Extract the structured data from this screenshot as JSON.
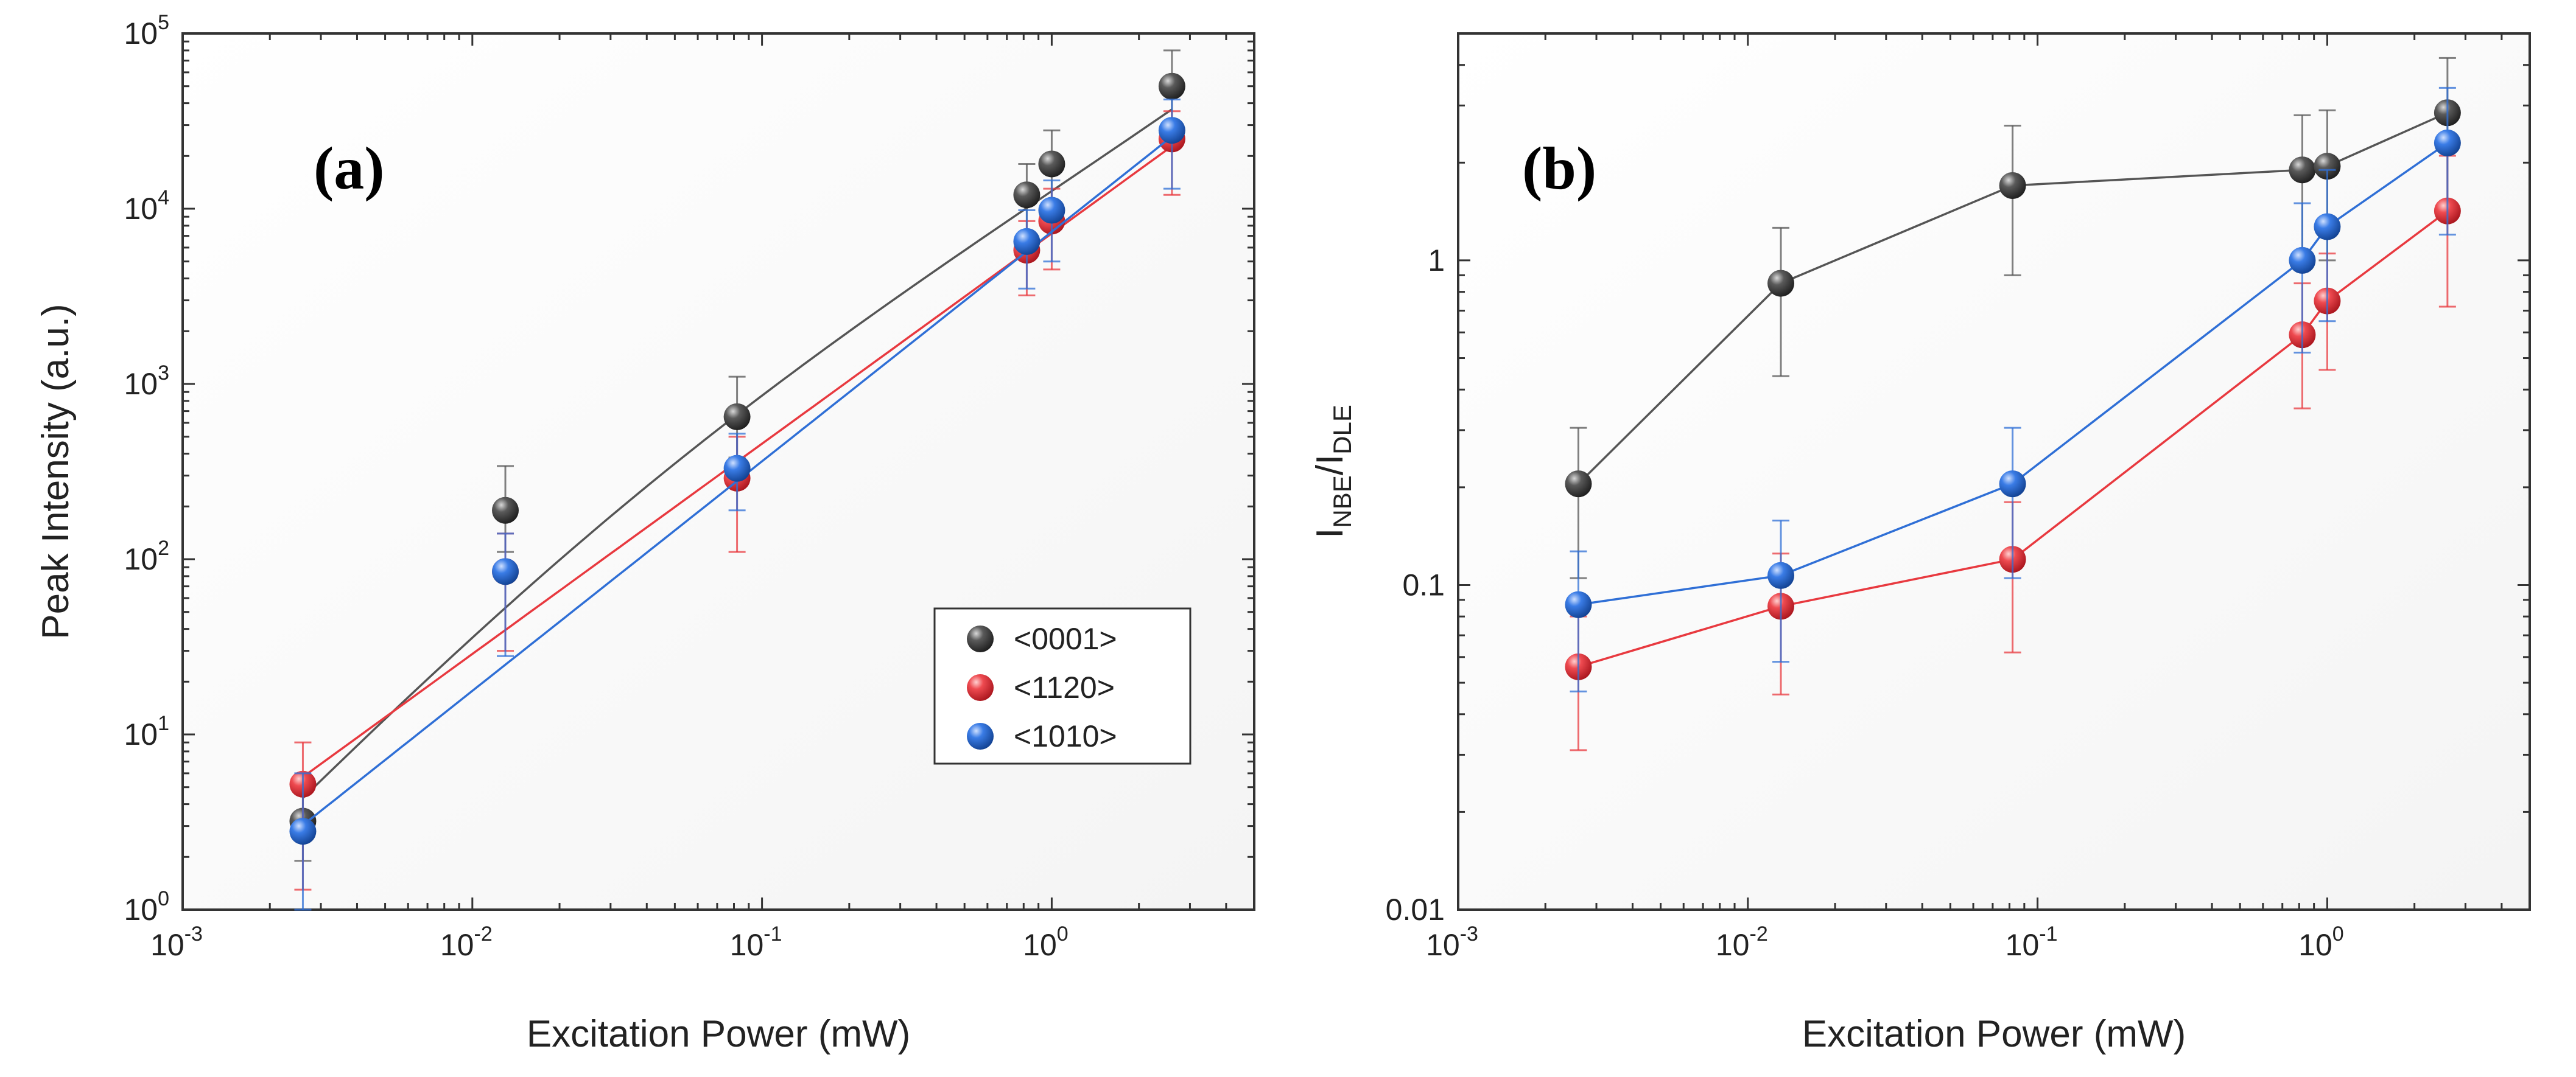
{
  "chart_data": [
    {
      "type": "scatter",
      "panel_label": "(a)",
      "xlabel": "Excitation Power (mW)",
      "ylabel": "Peak Intensity (a.u.)",
      "xscale": "log",
      "yscale": "log",
      "xlim": [
        0.001,
        5
      ],
      "ylim": [
        1,
        100000
      ],
      "x_ticks": [
        {
          "value": 0.001,
          "base": "10",
          "exp": "-3"
        },
        {
          "value": 0.01,
          "base": "10",
          "exp": "-2"
        },
        {
          "value": 0.1,
          "base": "10",
          "exp": "-1"
        },
        {
          "value": 1,
          "base": "10",
          "exp": "0"
        }
      ],
      "y_ticks": [
        {
          "value": 1,
          "base": "10",
          "exp": "0"
        },
        {
          "value": 10,
          "base": "10",
          "exp": "1"
        },
        {
          "value": 100,
          "base": "10",
          "exp": "2"
        },
        {
          "value": 1000,
          "base": "10",
          "exp": "3"
        },
        {
          "value": 10000,
          "base": "10",
          "exp": "4"
        },
        {
          "value": 100000,
          "base": "10",
          "exp": "5"
        }
      ],
      "x": [
        0.0026,
        0.013,
        0.082,
        0.82,
        1.0,
        2.6
      ],
      "legend_position": "lower-right",
      "series": [
        {
          "name": "<0001>",
          "color": "#3a3a3a",
          "line_color": "#555555",
          "values": [
            3.2,
            190,
            650,
            12000,
            18000,
            50000
          ],
          "err_low": [
            1.9,
            110,
            380,
            6500,
            10000,
            28000
          ],
          "err_high": [
            5.0,
            340,
            1100,
            18000,
            28000,
            80000
          ],
          "fit": "power",
          "fit_exponent": 1.31
        },
        {
          "name": "<1120>",
          "color": "#e8393f",
          "line_color": "#e8393f",
          "values": [
            5.2,
            85,
            290,
            5800,
            8500,
            25000
          ],
          "err_low": [
            1.3,
            30,
            110,
            3200,
            4500,
            12000
          ],
          "err_high": [
            9.0,
            140,
            500,
            8500,
            13000,
            36000
          ],
          "fit": "power",
          "fit_exponent": 1.2
        },
        {
          "name": "<1010>",
          "color": "#2f6fd6",
          "line_color": "#2f6fd6",
          "values": [
            2.8,
            85,
            330,
            6500,
            9800,
            28000
          ],
          "err_low": [
            1.0,
            28,
            190,
            3500,
            5000,
            13000
          ],
          "err_high": [
            6.0,
            140,
            520,
            9800,
            14500,
            42000
          ],
          "fit": "power",
          "fit_exponent": 1.31
        }
      ]
    },
    {
      "type": "line",
      "panel_label": "(b)",
      "xlabel": "Excitation Power (mW)",
      "ylabel_main": "I",
      "ylabel_sub1": "NBE",
      "ylabel_mid": "/I",
      "ylabel_sub2": "DLE",
      "xscale": "log",
      "yscale": "log",
      "xlim": [
        0.001,
        5
      ],
      "ylim": [
        0.01,
        5
      ],
      "x_ticks": [
        {
          "value": 0.001,
          "base": "10",
          "exp": "-3"
        },
        {
          "value": 0.01,
          "base": "10",
          "exp": "-2"
        },
        {
          "value": 0.1,
          "base": "10",
          "exp": "-1"
        },
        {
          "value": 1,
          "base": "10",
          "exp": "0"
        }
      ],
      "y_ticks": [
        {
          "value": 0.01,
          "label": "0.01"
        },
        {
          "value": 0.1,
          "label": "0.1"
        },
        {
          "value": 1,
          "label": "1"
        }
      ],
      "x": [
        0.0026,
        0.013,
        0.082,
        0.82,
        1.0,
        2.6
      ],
      "series": [
        {
          "name": "<0001>",
          "color": "#3a3a3a",
          "line_color": "#555555",
          "values": [
            0.205,
            0.85,
            1.7,
            1.9,
            1.95,
            2.85
          ],
          "err_low": [
            0.105,
            0.44,
            0.9,
            1.0,
            1.0,
            1.5
          ],
          "err_high": [
            0.305,
            1.26,
            2.6,
            2.8,
            2.9,
            4.2
          ]
        },
        {
          "name": "<1120>",
          "color": "#e8393f",
          "line_color": "#e8393f",
          "values": [
            0.056,
            0.086,
            0.12,
            0.59,
            0.75,
            1.42
          ],
          "err_low": [
            0.031,
            0.046,
            0.062,
            0.35,
            0.46,
            0.72
          ],
          "err_high": [
            0.08,
            0.125,
            0.18,
            0.85,
            1.05,
            2.1
          ]
        },
        {
          "name": "<1010>",
          "color": "#2f6fd6",
          "line_color": "#2f6fd6",
          "values": [
            0.087,
            0.107,
            0.205,
            1.0,
            1.27,
            2.3
          ],
          "err_low": [
            0.047,
            0.058,
            0.105,
            0.52,
            0.65,
            1.2
          ],
          "err_high": [
            0.127,
            0.158,
            0.305,
            1.5,
            1.9,
            3.4
          ]
        }
      ]
    }
  ]
}
